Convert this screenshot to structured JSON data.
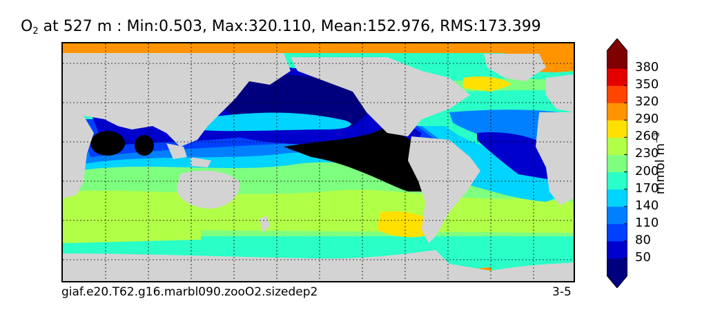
{
  "title": {
    "variable": "O",
    "subscript": "2",
    "text": " at 527 m : Min:0.503, Max:320.110, Mean:152.976, RMS:173.399"
  },
  "footer": {
    "case": "giaf.e20.T62.g16.marbl090.zooO2.sizedep2",
    "years": "3-5"
  },
  "colorbar": {
    "unit_main": "mmol m",
    "unit_exp": "−3",
    "ticks": [
      "50",
      "80",
      "110",
      "140",
      "170",
      "200",
      "230",
      "260",
      "290",
      "320",
      "350",
      "380"
    ],
    "colors": [
      "#00007f",
      "#0000cd",
      "#0040ff",
      "#0080ff",
      "#00d4ff",
      "#2affc8",
      "#7fff7f",
      "#b2ff48",
      "#ffe000",
      "#ff9400",
      "#ff4500",
      "#e30000",
      "#7f0000"
    ],
    "extend": "both"
  },
  "map": {
    "land_color": "#d3d3d3",
    "grid": "dotted"
  }
}
